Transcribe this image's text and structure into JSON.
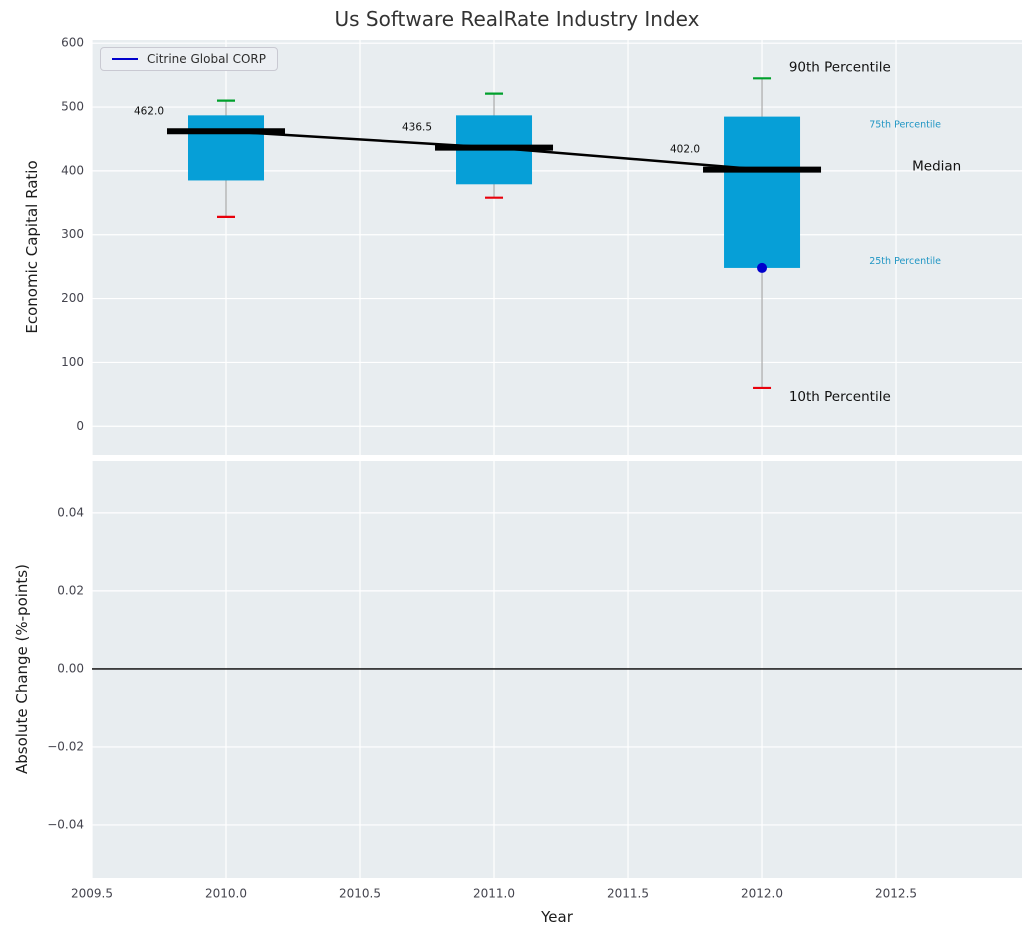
{
  "title": "Us Software RealRate Industry Index",
  "colors": {
    "plot_bg": "#e8edf0",
    "grid": "#ffffff",
    "box_fill": "#069fd7",
    "median": "#000000",
    "whisker": "#9a9a9a",
    "cap_high": "#00a02c",
    "cap_low": "#e8000b",
    "company": "#0000cc",
    "accent_text": "#2196c4",
    "tick_label": "#44444e",
    "title_color": "#333333"
  },
  "chart_data": [
    {
      "type": "boxplot",
      "title": "Us Software RealRate Industry Index",
      "ylabel": "Economic Capital Ratio",
      "legend_label": "Citrine Global CORP",
      "x": [
        2010,
        2011,
        2012
      ],
      "median": [
        462.0,
        436.5,
        402.0
      ],
      "median_labels": [
        "462.0",
        "436.5",
        "402.0"
      ],
      "p75": [
        487,
        487,
        485
      ],
      "p25": [
        385,
        379,
        248
      ],
      "p90": [
        510,
        521,
        545
      ],
      "p10": [
        328,
        358,
        60
      ],
      "company_point": {
        "name": "Citrine Global CORP",
        "x": 2012,
        "y": 248
      },
      "xlim": [
        2009.5,
        2012.97
      ],
      "ylim": [
        -45,
        605
      ],
      "yticks": [
        0,
        100,
        200,
        300,
        400,
        500,
        600
      ],
      "ytick_labels": [
        "0",
        "100",
        "200",
        "300",
        "400",
        "500",
        "600"
      ],
      "xticks": [
        2009.5,
        2010,
        2010.5,
        2011,
        2011.5,
        2012,
        2012.5
      ],
      "annotations": [
        {
          "label": "90th Percentile",
          "x": 2012.1,
          "value": 562,
          "size": "large",
          "color": "black"
        },
        {
          "label": "75th Percentile",
          "x": 2012.4,
          "value": 472,
          "size": "small",
          "color": "accent"
        },
        {
          "label": "Median",
          "x": 2012.56,
          "value": 407,
          "size": "large",
          "color": "black"
        },
        {
          "label": "25th Percentile",
          "x": 2012.4,
          "value": 258,
          "size": "small",
          "color": "accent"
        },
        {
          "label": "10th Percentile",
          "x": 2012.1,
          "value": 46,
          "size": "large",
          "color": "black"
        }
      ]
    },
    {
      "type": "line",
      "ylabel": "Absolute Change (%-points)",
      "xlabel": "Year",
      "series": [],
      "zero_line": 0.0,
      "xlim": [
        2009.5,
        2012.97
      ],
      "ylim": [
        -0.0536,
        0.0533
      ],
      "yticks": [
        -0.04,
        -0.02,
        0.0,
        0.02,
        0.04
      ],
      "ytick_labels": [
        "−0.04",
        "−0.02",
        "0.00",
        "0.02",
        "0.04"
      ],
      "xticks": [
        2009.5,
        2010,
        2010.5,
        2011,
        2011.5,
        2012,
        2012.5
      ],
      "xtick_labels": [
        "2009.5",
        "2010.0",
        "2010.5",
        "2011.0",
        "2011.5",
        "2012.0",
        "2012.5"
      ]
    }
  ]
}
